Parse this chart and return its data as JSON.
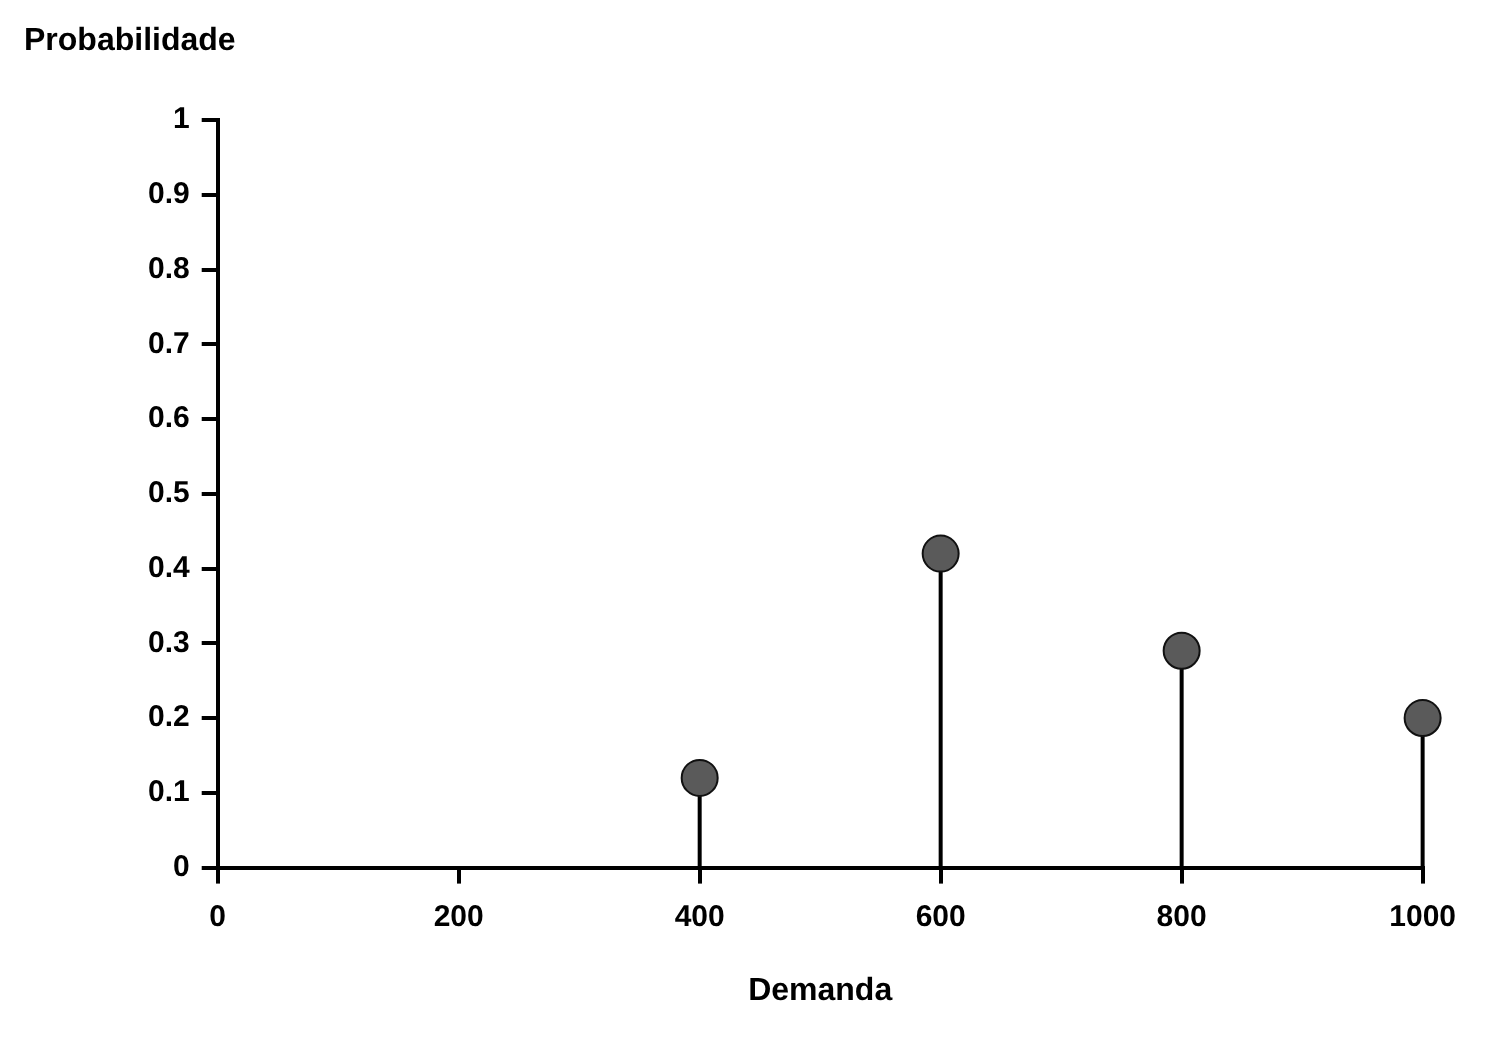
{
  "chart_data": {
    "type": "lollipop",
    "xlabel": "Demanda",
    "ylabel": "Probabilidade",
    "x": [
      400,
      600,
      800,
      1000
    ],
    "series": [
      {
        "color": "#5a5a5a",
        "values": [
          0.12,
          0.42,
          0.29,
          0.2
        ]
      }
    ],
    "xlim": [
      0,
      1000
    ],
    "xticks": [
      0,
      200,
      400,
      600,
      800,
      1000
    ],
    "ylim": [
      0,
      1
    ],
    "yticks": [
      0,
      0.1,
      0.2,
      0.3,
      0.4,
      0.5,
      0.6,
      0.7,
      0.8,
      0.9,
      1
    ],
    "grid": false,
    "legend": false,
    "marker": "circle"
  }
}
